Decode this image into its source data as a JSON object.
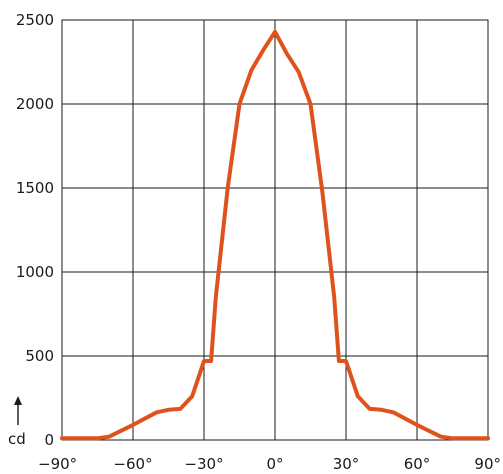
{
  "chart_data": {
    "type": "line",
    "title": "",
    "xlabel": "",
    "ylabel": "cd",
    "xlim": [
      -90,
      90
    ],
    "ylim": [
      0,
      2500
    ],
    "grid": true,
    "x_tick_labels": [
      "−90°",
      "−60°",
      "−30°",
      "0°",
      "30°",
      "60°",
      "90°"
    ],
    "y_tick_labels": [
      "0",
      "500",
      "1000",
      "1500",
      "2000",
      "2500"
    ],
    "x_ticks": [
      -90,
      -60,
      -30,
      0,
      30,
      60,
      90
    ],
    "y_ticks": [
      0,
      500,
      1000,
      1500,
      2000,
      2500
    ],
    "series": [
      {
        "color": "#e0521c",
        "x": [
          -90,
          -75,
          -70,
          -60,
          -50,
          -45,
          -40,
          -35,
          -30,
          -27,
          -25,
          -20,
          -15,
          -10,
          -5,
          0,
          5,
          10,
          15,
          20,
          25,
          27,
          30,
          35,
          40,
          45,
          50,
          60,
          70,
          75,
          90
        ],
        "y": [
          10,
          10,
          20,
          90,
          165,
          180,
          185,
          260,
          470,
          470,
          850,
          1500,
          2000,
          2200,
          2320,
          2430,
          2300,
          2190,
          2000,
          1480,
          850,
          470,
          470,
          260,
          185,
          180,
          165,
          90,
          20,
          10,
          10
        ]
      }
    ]
  }
}
